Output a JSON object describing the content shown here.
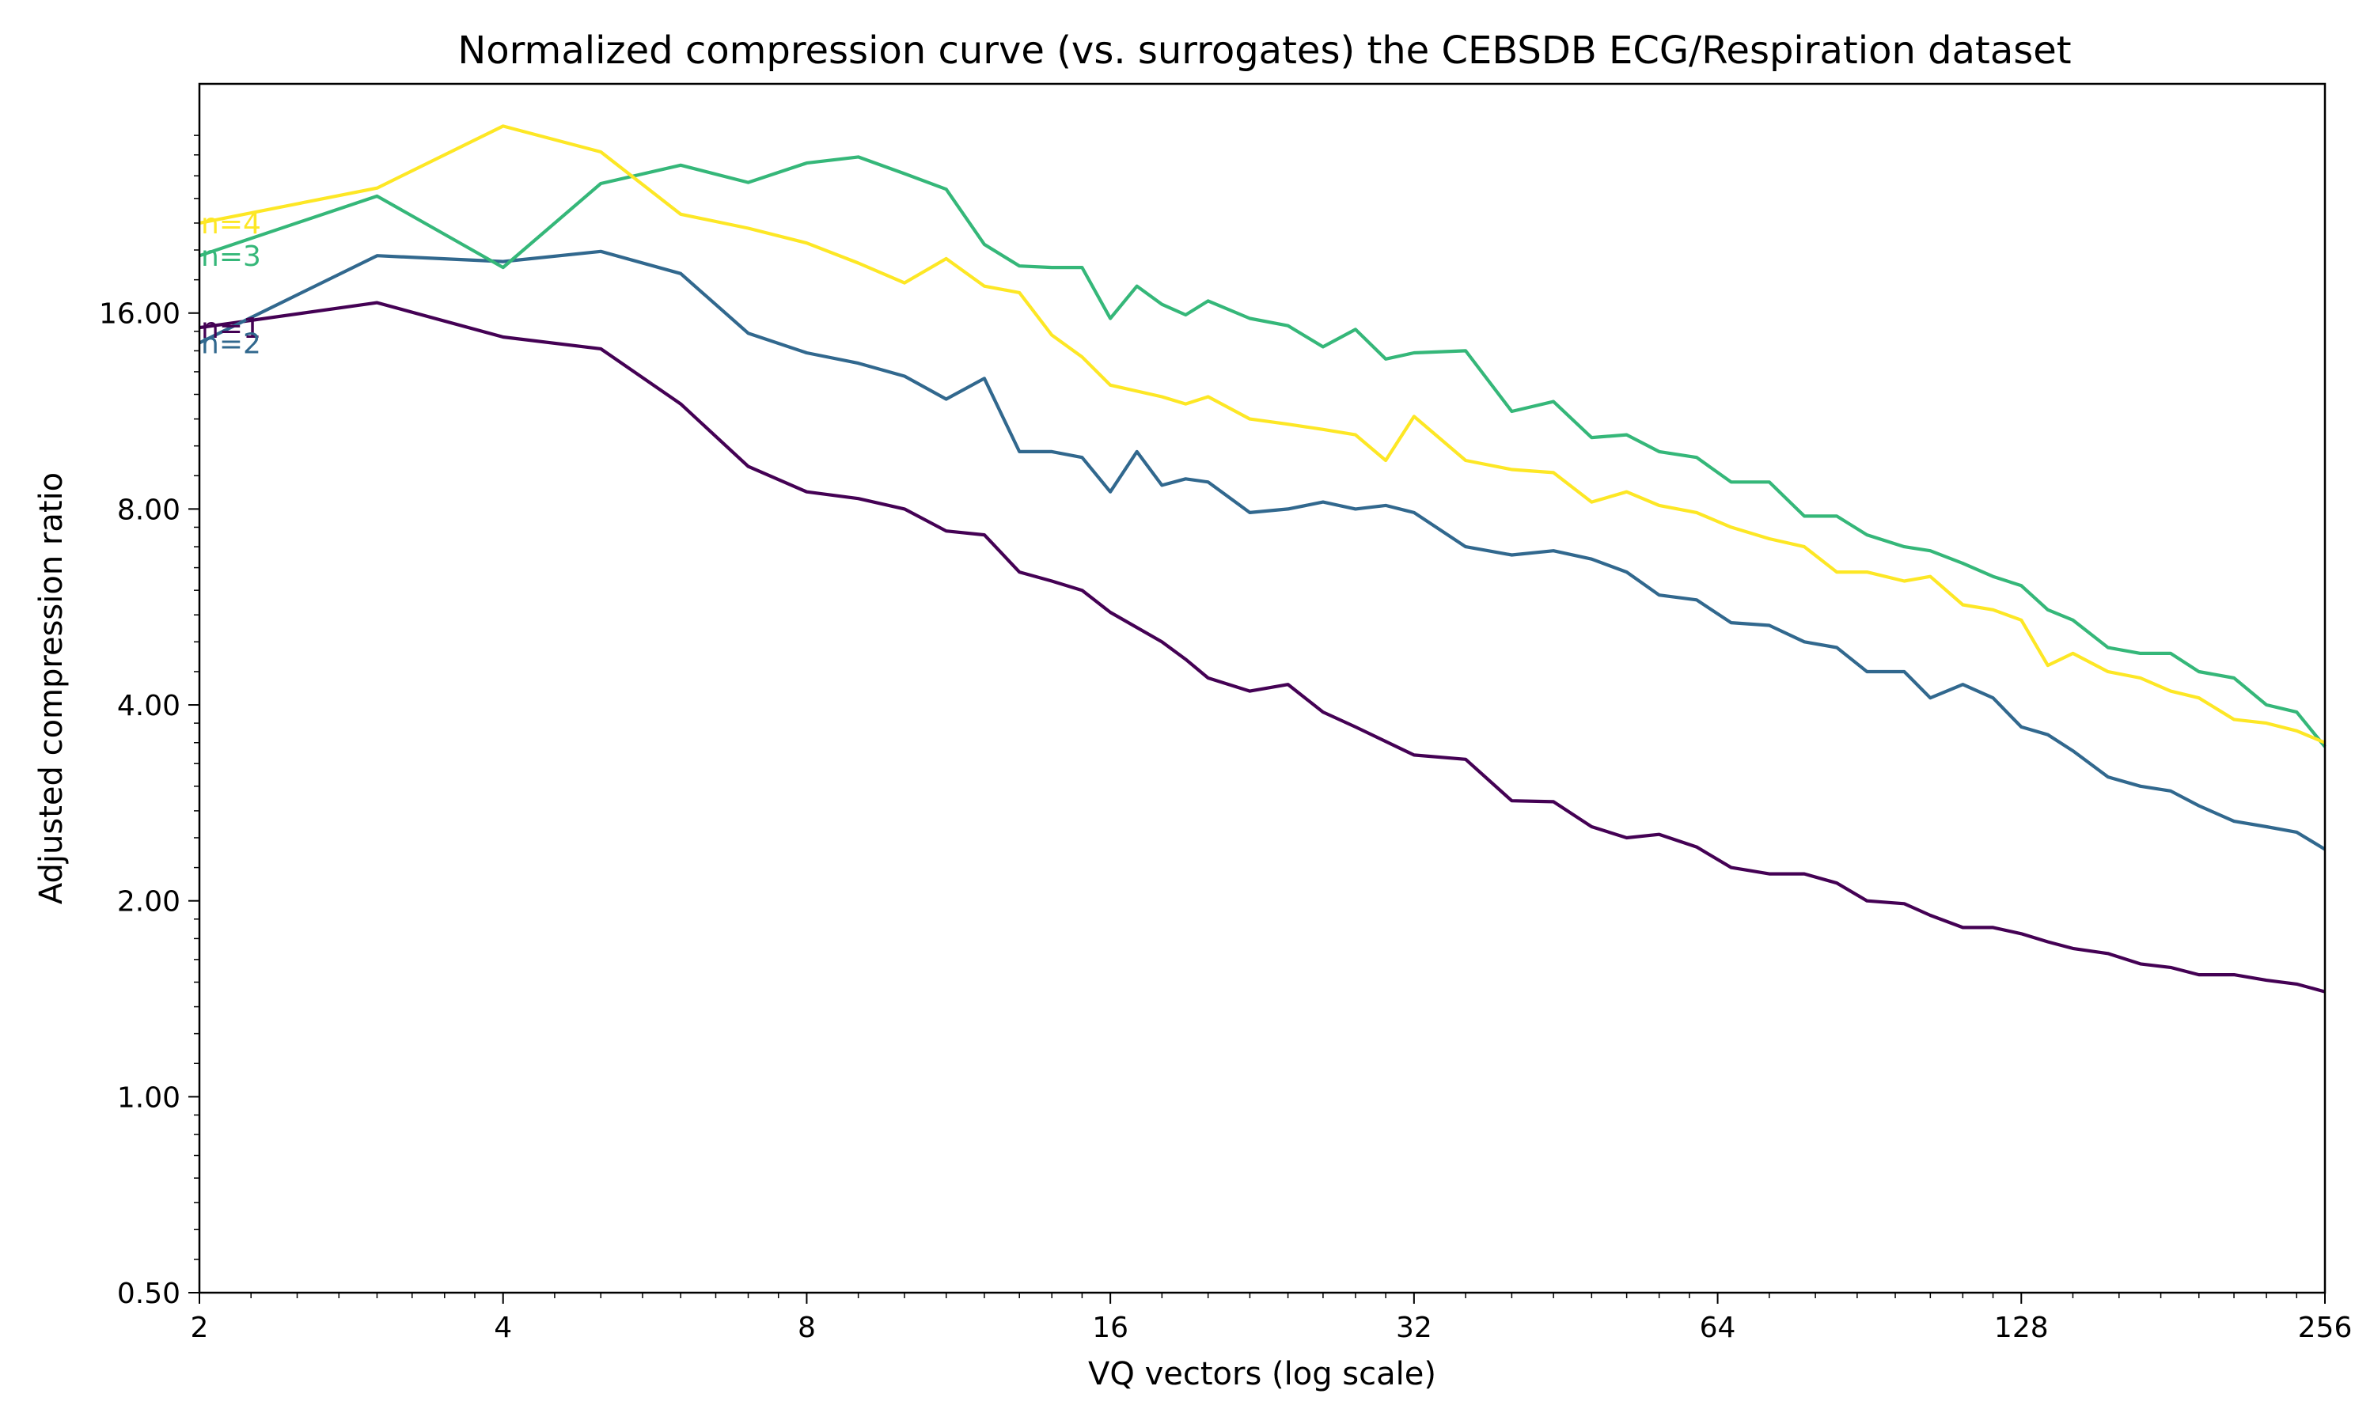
{
  "chart_data": {
    "type": "line",
    "title": "Normalized compression curve (vs. surrogates) the CEBSDB ECG/Respiration dataset",
    "xlabel": "VQ vectors (log scale)",
    "ylabel": "Adjusted compression ratio",
    "x_scale": "log2",
    "y_scale": "log2",
    "xlim": [
      2,
      256
    ],
    "ylim": [
      0.5,
      36
    ],
    "x_ticks": [
      2,
      4,
      8,
      16,
      32,
      64,
      128,
      256
    ],
    "x_tick_labels": [
      "2",
      "4",
      "8",
      "16",
      "32",
      "64",
      "128",
      "256"
    ],
    "y_ticks": [
      0.5,
      1,
      2,
      4,
      8,
      16
    ],
    "y_tick_labels": [
      "0.50",
      "1.00",
      "2.00",
      "4.00",
      "8.00",
      "16.00"
    ],
    "grid": false,
    "legend": "none (series labelled inline at left edge)",
    "series": [
      {
        "name": "n=1",
        "color": "#440154",
        "points": [
          [
            2,
            15.2
          ],
          [
            3,
            16.6
          ],
          [
            4,
            14.7
          ],
          [
            5,
            14.1
          ],
          [
            6,
            11.6
          ],
          [
            7,
            9.3
          ],
          [
            8,
            8.5
          ],
          [
            9,
            8.3
          ],
          [
            10,
            8.0
          ],
          [
            11,
            7.4
          ],
          [
            12,
            7.3
          ],
          [
            13,
            6.4
          ],
          [
            14,
            6.2
          ],
          [
            15,
            6.0
          ],
          [
            16,
            5.55
          ],
          [
            18,
            5.0
          ],
          [
            19,
            4.7
          ],
          [
            20,
            4.4
          ],
          [
            22,
            4.2
          ],
          [
            24,
            4.3
          ],
          [
            26,
            3.9
          ],
          [
            28,
            3.7
          ],
          [
            32,
            3.35
          ],
          [
            36,
            3.3
          ],
          [
            40,
            2.85
          ],
          [
            44,
            2.84
          ],
          [
            48,
            2.6
          ],
          [
            52,
            2.5
          ],
          [
            56,
            2.53
          ],
          [
            61,
            2.42
          ],
          [
            66,
            2.25
          ],
          [
            72,
            2.2
          ],
          [
            78,
            2.2
          ],
          [
            84,
            2.13
          ],
          [
            90,
            2.0
          ],
          [
            98,
            1.98
          ],
          [
            104,
            1.9
          ],
          [
            112,
            1.82
          ],
          [
            120,
            1.82
          ],
          [
            128,
            1.78
          ],
          [
            136,
            1.73
          ],
          [
            144,
            1.69
          ],
          [
            156,
            1.66
          ],
          [
            168,
            1.6
          ],
          [
            180,
            1.58
          ],
          [
            192,
            1.54
          ],
          [
            208,
            1.54
          ],
          [
            224,
            1.51
          ],
          [
            240,
            1.49
          ],
          [
            256,
            1.45
          ]
        ]
      },
      {
        "name": "n=2",
        "color": "#31688e",
        "points": [
          [
            2,
            14.4
          ],
          [
            3,
            19.6
          ],
          [
            4,
            19.2
          ],
          [
            5,
            19.9
          ],
          [
            6,
            18.4
          ],
          [
            7,
            14.9
          ],
          [
            8,
            13.9
          ],
          [
            9,
            13.4
          ],
          [
            10,
            12.8
          ],
          [
            11,
            11.8
          ],
          [
            12,
            12.7
          ],
          [
            13,
            9.8
          ],
          [
            14,
            9.8
          ],
          [
            15,
            9.6
          ],
          [
            16,
            8.5
          ],
          [
            17,
            9.8
          ],
          [
            18,
            8.7
          ],
          [
            19,
            8.9
          ],
          [
            20,
            8.8
          ],
          [
            22,
            7.9
          ],
          [
            24,
            8.0
          ],
          [
            26,
            8.2
          ],
          [
            28,
            8.0
          ],
          [
            30,
            8.1
          ],
          [
            32,
            7.9
          ],
          [
            36,
            7.0
          ],
          [
            40,
            6.8
          ],
          [
            44,
            6.9
          ],
          [
            48,
            6.7
          ],
          [
            52,
            6.4
          ],
          [
            56,
            5.9
          ],
          [
            61,
            5.8
          ],
          [
            66,
            5.35
          ],
          [
            72,
            5.3
          ],
          [
            78,
            5.0
          ],
          [
            84,
            4.9
          ],
          [
            90,
            4.5
          ],
          [
            98,
            4.5
          ],
          [
            104,
            4.1
          ],
          [
            112,
            4.3
          ],
          [
            120,
            4.1
          ],
          [
            128,
            3.7
          ],
          [
            136,
            3.6
          ],
          [
            144,
            3.4
          ],
          [
            156,
            3.1
          ],
          [
            168,
            3.0
          ],
          [
            180,
            2.95
          ],
          [
            192,
            2.8
          ],
          [
            208,
            2.65
          ],
          [
            224,
            2.6
          ],
          [
            240,
            2.55
          ],
          [
            256,
            2.4
          ]
        ]
      },
      {
        "name": "n=3",
        "color": "#35b779",
        "points": [
          [
            2,
            19.6
          ],
          [
            3,
            24.2
          ],
          [
            4,
            18.8
          ],
          [
            5,
            25.3
          ],
          [
            6,
            27.0
          ],
          [
            7,
            25.4
          ],
          [
            8,
            27.2
          ],
          [
            9,
            27.8
          ],
          [
            10,
            26.2
          ],
          [
            11,
            24.8
          ],
          [
            12,
            20.4
          ],
          [
            13,
            18.9
          ],
          [
            14,
            18.8
          ],
          [
            15,
            18.8
          ],
          [
            16,
            15.7
          ],
          [
            17,
            17.6
          ],
          [
            18,
            16.5
          ],
          [
            19,
            15.9
          ],
          [
            20,
            16.7
          ],
          [
            22,
            15.7
          ],
          [
            24,
            15.3
          ],
          [
            26,
            14.2
          ],
          [
            28,
            15.1
          ],
          [
            30,
            13.6
          ],
          [
            32,
            13.9
          ],
          [
            36,
            14.0
          ],
          [
            40,
            11.3
          ],
          [
            44,
            11.7
          ],
          [
            48,
            10.3
          ],
          [
            52,
            10.4
          ],
          [
            56,
            9.8
          ],
          [
            61,
            9.6
          ],
          [
            66,
            8.8
          ],
          [
            72,
            8.8
          ],
          [
            78,
            7.8
          ],
          [
            84,
            7.8
          ],
          [
            90,
            7.3
          ],
          [
            98,
            7.0
          ],
          [
            104,
            6.9
          ],
          [
            112,
            6.6
          ],
          [
            120,
            6.3
          ],
          [
            128,
            6.1
          ],
          [
            136,
            5.6
          ],
          [
            144,
            5.4
          ],
          [
            156,
            4.9
          ],
          [
            168,
            4.8
          ],
          [
            180,
            4.8
          ],
          [
            192,
            4.5
          ],
          [
            208,
            4.4
          ],
          [
            224,
            4.0
          ],
          [
            240,
            3.9
          ],
          [
            256,
            3.45
          ]
        ]
      },
      {
        "name": "n=4",
        "color": "#fde725",
        "points": [
          [
            2,
            22.0
          ],
          [
            3,
            24.9
          ],
          [
            4,
            31.0
          ],
          [
            5,
            28.3
          ],
          [
            6,
            22.7
          ],
          [
            7,
            21.6
          ],
          [
            8,
            20.5
          ],
          [
            9,
            19.1
          ],
          [
            10,
            17.8
          ],
          [
            11,
            19.4
          ],
          [
            12,
            17.6
          ],
          [
            13,
            17.2
          ],
          [
            14,
            14.8
          ],
          [
            15,
            13.7
          ],
          [
            16,
            12.4
          ],
          [
            18,
            11.9
          ],
          [
            19,
            11.6
          ],
          [
            20,
            11.9
          ],
          [
            22,
            11.0
          ],
          [
            24,
            10.8
          ],
          [
            26,
            10.6
          ],
          [
            28,
            10.4
          ],
          [
            30,
            9.5
          ],
          [
            32,
            11.1
          ],
          [
            36,
            9.5
          ],
          [
            40,
            9.2
          ],
          [
            44,
            9.1
          ],
          [
            48,
            8.2
          ],
          [
            52,
            8.5
          ],
          [
            56,
            8.1
          ],
          [
            61,
            7.9
          ],
          [
            66,
            7.5
          ],
          [
            72,
            7.2
          ],
          [
            78,
            7.0
          ],
          [
            84,
            6.4
          ],
          [
            90,
            6.4
          ],
          [
            98,
            6.2
          ],
          [
            104,
            6.3
          ],
          [
            112,
            5.7
          ],
          [
            120,
            5.6
          ],
          [
            128,
            5.4
          ],
          [
            136,
            4.6
          ],
          [
            144,
            4.8
          ],
          [
            156,
            4.5
          ],
          [
            168,
            4.4
          ],
          [
            180,
            4.2
          ],
          [
            192,
            4.1
          ],
          [
            208,
            3.8
          ],
          [
            224,
            3.75
          ],
          [
            240,
            3.65
          ],
          [
            256,
            3.5
          ]
        ]
      }
    ]
  }
}
